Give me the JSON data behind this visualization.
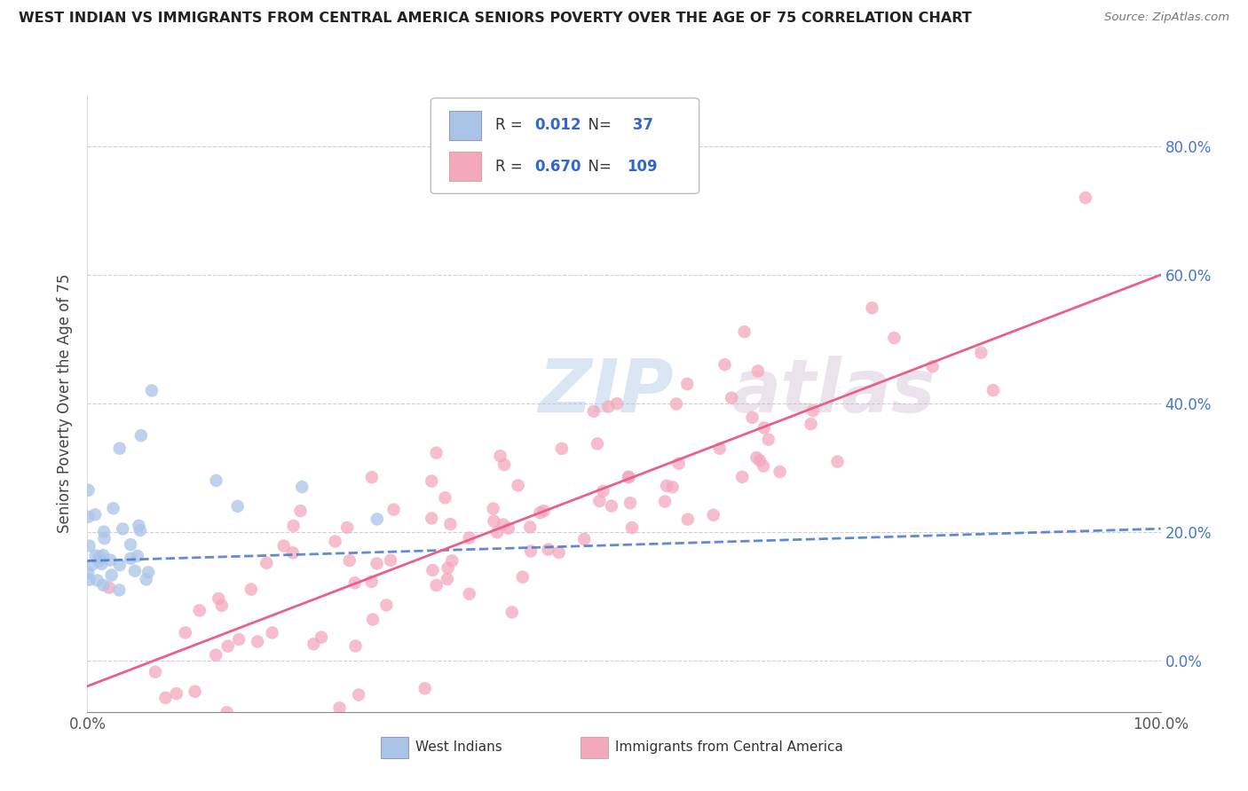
{
  "title": "WEST INDIAN VS IMMIGRANTS FROM CENTRAL AMERICA SENIORS POVERTY OVER THE AGE OF 75 CORRELATION CHART",
  "source": "Source: ZipAtlas.com",
  "ylabel": "Seniors Poverty Over the Age of 75",
  "west_indian_R": 0.012,
  "west_indian_N": 37,
  "central_america_R": 0.67,
  "central_america_N": 109,
  "west_indian_color": "#aac4e8",
  "central_america_color": "#f4a8bc",
  "west_indian_line_color": "#4477cc",
  "central_america_line_color": "#e8608a",
  "background_color": "#ffffff",
  "grid_color": "#c8c8d8",
  "xlim": [
    0,
    1.0
  ],
  "ylim": [
    -0.08,
    0.88
  ],
  "y_ticks": [
    0.0,
    0.2,
    0.4,
    0.6,
    0.8
  ],
  "y_labels": [
    "0.0%",
    "20.0%",
    "40.0%",
    "60.0%",
    "80.0%"
  ],
  "watermark_zip": "ZIP",
  "watermark_atlas": "atlas",
  "wi_line_y0": 0.155,
  "wi_line_y1": 0.205,
  "ca_line_y0": -0.04,
  "ca_line_y1": 0.6
}
